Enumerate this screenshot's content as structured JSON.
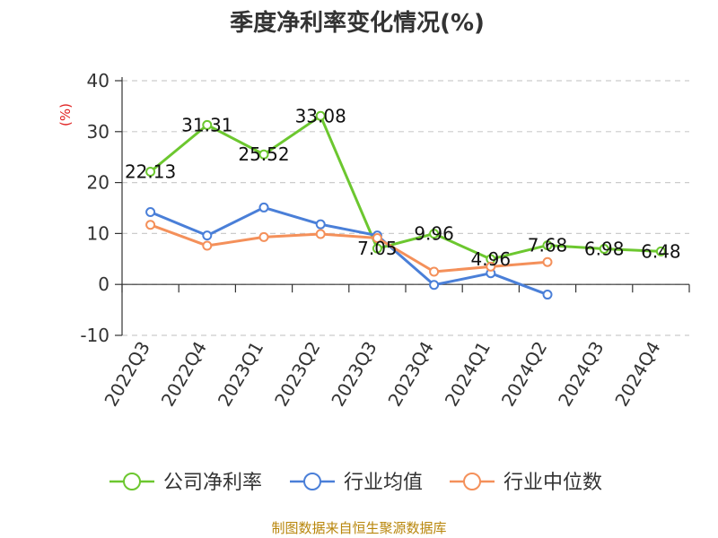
{
  "chart_data": {
    "type": "line",
    "title": "季度净利率变化情况(%)",
    "ylabel": "(%)",
    "ylim": [
      -10,
      40
    ],
    "yticks": [
      "40",
      "30",
      "20",
      "10",
      "0",
      "-10"
    ],
    "grid": "dashed horizontal",
    "legend_position": "bottom",
    "categories": [
      "2022Q3",
      "2022Q4",
      "2023Q1",
      "2023Q2",
      "2023Q3",
      "2023Q4",
      "2024Q1",
      "2024Q2",
      "2024Q3",
      "2024Q4"
    ],
    "series": [
      {
        "name": "公司净利率",
        "color": "#6cc72f",
        "values": [
          22.13,
          31.31,
          25.52,
          33.08,
          7.05,
          9.96,
          4.96,
          7.68,
          6.98,
          6.48
        ],
        "labels": [
          "22.13",
          "31.31",
          "25.52",
          "33.08",
          "7.05",
          "9.96",
          "4.96",
          "7.68",
          "6.98",
          "6.48"
        ]
      },
      {
        "name": "行业均值",
        "color": "#4a7fd8",
        "values": [
          14.2,
          9.6,
          15.1,
          11.8,
          9.6,
          -0.1,
          2.2,
          -2.0,
          null,
          null
        ]
      },
      {
        "name": "行业中位数",
        "color": "#f4905a",
        "values": [
          11.7,
          7.6,
          9.3,
          9.9,
          9.1,
          2.5,
          3.5,
          4.4,
          null,
          null
        ]
      }
    ],
    "source": "制图数据来自恒生聚源数据库"
  }
}
